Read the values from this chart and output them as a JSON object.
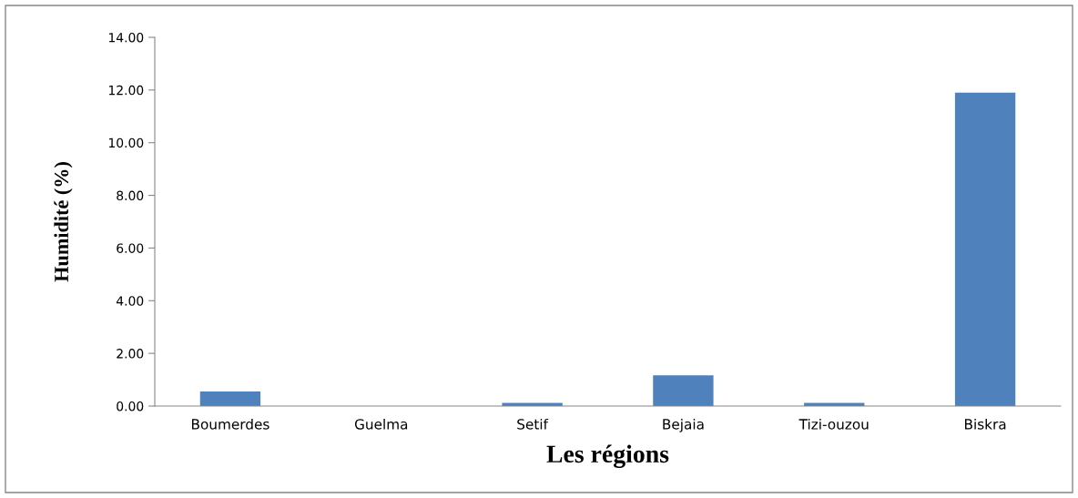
{
  "chart_data": {
    "type": "bar",
    "xlabel": "Les régions",
    "ylabel": "Humidité (%)",
    "categories": [
      "Boumerdes",
      "Guelma",
      "Setif",
      "Bejaia",
      "Tizi-ouzou",
      "Biskra"
    ],
    "values": [
      0.55,
      0,
      0.12,
      1.17,
      0.12,
      11.9
    ],
    "color": "#4f81bd",
    "ylim": [
      0,
      14
    ],
    "yticks": [
      {
        "value": 0,
        "label": "0.00"
      },
      {
        "value": 2,
        "label": "2.00"
      },
      {
        "value": 4,
        "label": "4.00"
      },
      {
        "value": 6,
        "label": "6.00"
      },
      {
        "value": 8,
        "label": "8.00"
      },
      {
        "value": 10,
        "label": "10.00"
      },
      {
        "value": 12,
        "label": "12.00"
      },
      {
        "value": 14,
        "label": "14.00"
      }
    ],
    "grid": false,
    "legend": false
  }
}
